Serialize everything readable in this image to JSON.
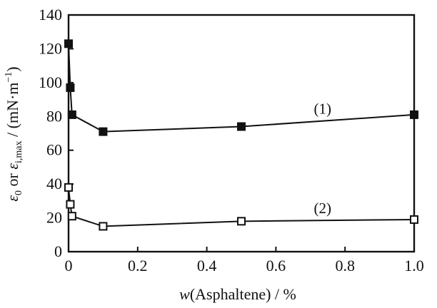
{
  "figure": {
    "background": "#ffffff",
    "ink": "#111111",
    "open_marker_fill": "#ffffff"
  },
  "chart_data": {
    "type": "line",
    "title": "",
    "grid": false,
    "legend": "none",
    "xlabel_parts": [
      {
        "text": "w",
        "italic": true
      },
      {
        "text": "(Asphaltene) / %"
      }
    ],
    "ylabel_parts": [
      {
        "text": "ε",
        "italic": true
      },
      {
        "text": "0",
        "sub": true
      },
      {
        "text": " or "
      },
      {
        "text": "ε",
        "italic": true
      },
      {
        "text": "i,max",
        "sub": true
      },
      {
        "text": " / (mN·m"
      },
      {
        "text": "−1",
        "sup": true
      },
      {
        "text": ")"
      }
    ],
    "xlim": [
      0,
      1.0
    ],
    "ylim": [
      0,
      140
    ],
    "x_ticks": [
      0,
      0.2,
      0.4,
      0.6,
      0.8,
      1.0
    ],
    "x_tick_labels": [
      "0",
      "0.2",
      "0.4",
      "0.6",
      "0.8",
      "1.0"
    ],
    "y_ticks": [
      0,
      20,
      40,
      60,
      80,
      100,
      120,
      140
    ],
    "y_tick_labels": [
      "0",
      "20",
      "40",
      "60",
      "80",
      "100",
      "120",
      "140"
    ],
    "series": [
      {
        "name": "(1)",
        "marker": "filled-square",
        "points": [
          [
            0,
            123
          ],
          [
            0.005,
            97
          ],
          [
            0.01,
            81
          ],
          [
            0.1,
            71
          ],
          [
            0.5,
            74
          ],
          [
            1.0,
            81
          ]
        ]
      },
      {
        "name": "(2)",
        "marker": "open-square",
        "points": [
          [
            0,
            38
          ],
          [
            0.005,
            28
          ],
          [
            0.01,
            21
          ],
          [
            0.1,
            15
          ],
          [
            0.5,
            18
          ],
          [
            1.0,
            19
          ]
        ]
      }
    ],
    "annotations": [
      {
        "text": "(1)",
        "x": 0.735,
        "y": 84.5
      },
      {
        "text": "(2)",
        "x": 0.735,
        "y": 25.8
      }
    ]
  }
}
